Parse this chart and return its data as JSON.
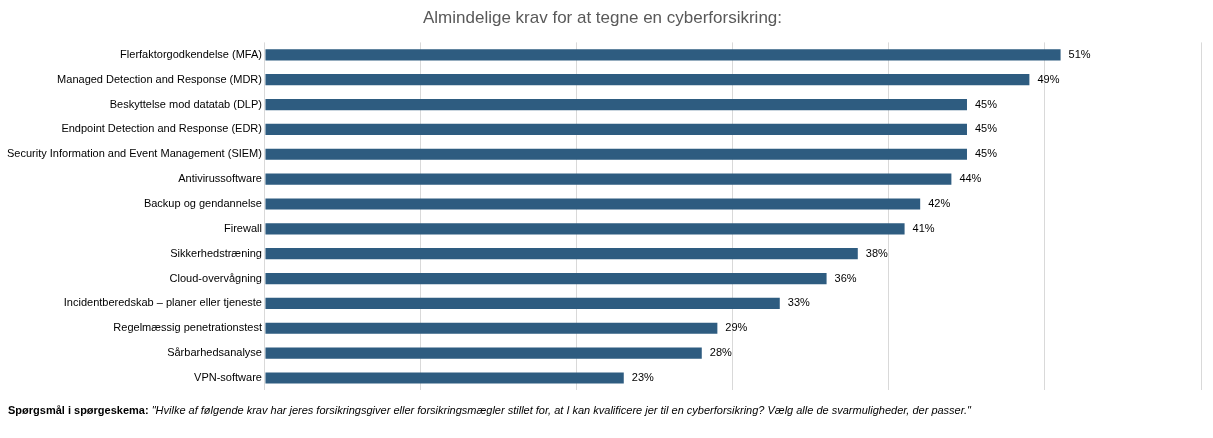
{
  "chart_data": {
    "type": "bar",
    "orientation": "horizontal",
    "title": "Almindelige krav for at tegne en cyberforsikring:",
    "categories": [
      "Flerfaktorgodkendelse (MFA)",
      "Managed Detection and Response (MDR)",
      "Beskyttelse mod datatab (DLP)",
      "Endpoint Detection and Response (EDR)",
      "Security Information and Event Management (SIEM)",
      "Antivirussoftware",
      "Backup og gendannelse",
      "Firewall",
      "Sikkerhedstræning",
      "Cloud-overvågning",
      "Incidentberedskab – planer eller tjeneste",
      "Regelmæssig penetrationstest",
      "Sårbarhedsanalyse",
      "VPN-software"
    ],
    "values": [
      51,
      49,
      45,
      45,
      45,
      44,
      42,
      41,
      38,
      36,
      33,
      29,
      28,
      23
    ],
    "value_labels": [
      "51%",
      "49%",
      "45%",
      "45%",
      "45%",
      "44%",
      "42%",
      "41%",
      "38%",
      "36%",
      "33%",
      "29%",
      "28%",
      "23%"
    ],
    "color": "#2e5c80",
    "xlim": [
      0,
      60
    ],
    "xticks": [
      {
        "value": 0,
        "label": null
      },
      {
        "value": 10,
        "label": null
      },
      {
        "value": 20,
        "label": null
      },
      {
        "value": 30,
        "label": null
      },
      {
        "value": 40,
        "label": null
      },
      {
        "value": 50,
        "label": null
      },
      {
        "value": 60,
        "label": null
      }
    ],
    "grid": "x",
    "legend": false,
    "tick_labels": "y",
    "annotations": [
      "Spørgsmål i spørgeskema:",
      "\"Hvilke af følgende krav har jeres forsikringsgiver eller forsikringsmægler stillet for, at I kan kvalificere jer til en cyberforsikring? Vælg alle de svarmuligheder, der passer.\""
    ]
  }
}
